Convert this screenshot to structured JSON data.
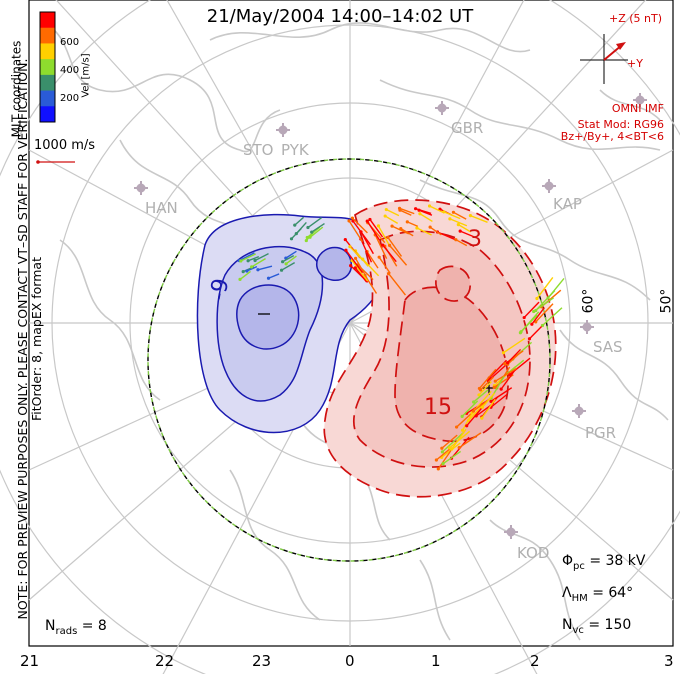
{
  "title": "21/May/2004  14:00–14:02  UT",
  "side_note": "NOTE: FOR PREVIEW PURPOSES ONLY. PLEASE CONTACT VT–SD STAFF FOR VERIFICATION.",
  "fit_order": "FitOrder: 8, mapEX format",
  "coords_label": "MLT coordinates",
  "colorbar": {
    "label": "Vel [m/s]",
    "ticks": [
      "600",
      "400",
      "200"
    ],
    "colors": [
      "#ff0000",
      "#ff6a00",
      "#ffd000",
      "#8edc2e",
      "#3a8f6b",
      "#2a5bd7",
      "#1010ff"
    ]
  },
  "ref_vector": "1000 m/s",
  "imf": {
    "z_label": "+Z (5 nT)",
    "y_label": "+Y",
    "source": "OMNI IMF",
    "stat_mod": "Stat Mod: RG96",
    "condition": "Bz+/By+, 4<BT<6"
  },
  "stations": [
    "STO",
    "PYK",
    "GBR",
    "HAN",
    "KAP",
    "SAS",
    "PGR",
    "KOD"
  ],
  "contour_labels": {
    "negative": "-9",
    "positive_small": "3",
    "positive_large": "15"
  },
  "lat_labels": [
    "60°",
    "50°"
  ],
  "mlt_hours": [
    "21",
    "22",
    "23",
    "0",
    "1",
    "2",
    "3"
  ],
  "stats": {
    "n_rads_label": "N",
    "n_rads_sub": "rads",
    "n_rads_value": "= 8",
    "phi_label": "Φ",
    "phi_sub": "pc",
    "phi_value": "= 38 kV",
    "lambda_label": "Λ",
    "lambda_sub": "HM",
    "lambda_value": "= 64°",
    "nvc_label": "N",
    "nvc_sub": "vc",
    "nvc_value": "= 150"
  },
  "colors": {
    "negative_fill": "#c7c9ee",
    "negative_line": "#1a1ab0",
    "positive_fill": "#f5c4c0",
    "positive_line": "#d01010",
    "grid": "#c8c8c8",
    "coast": "#c9c9c9",
    "station": "#b8a8b8",
    "boundary_dash": "#7ec843"
  }
}
